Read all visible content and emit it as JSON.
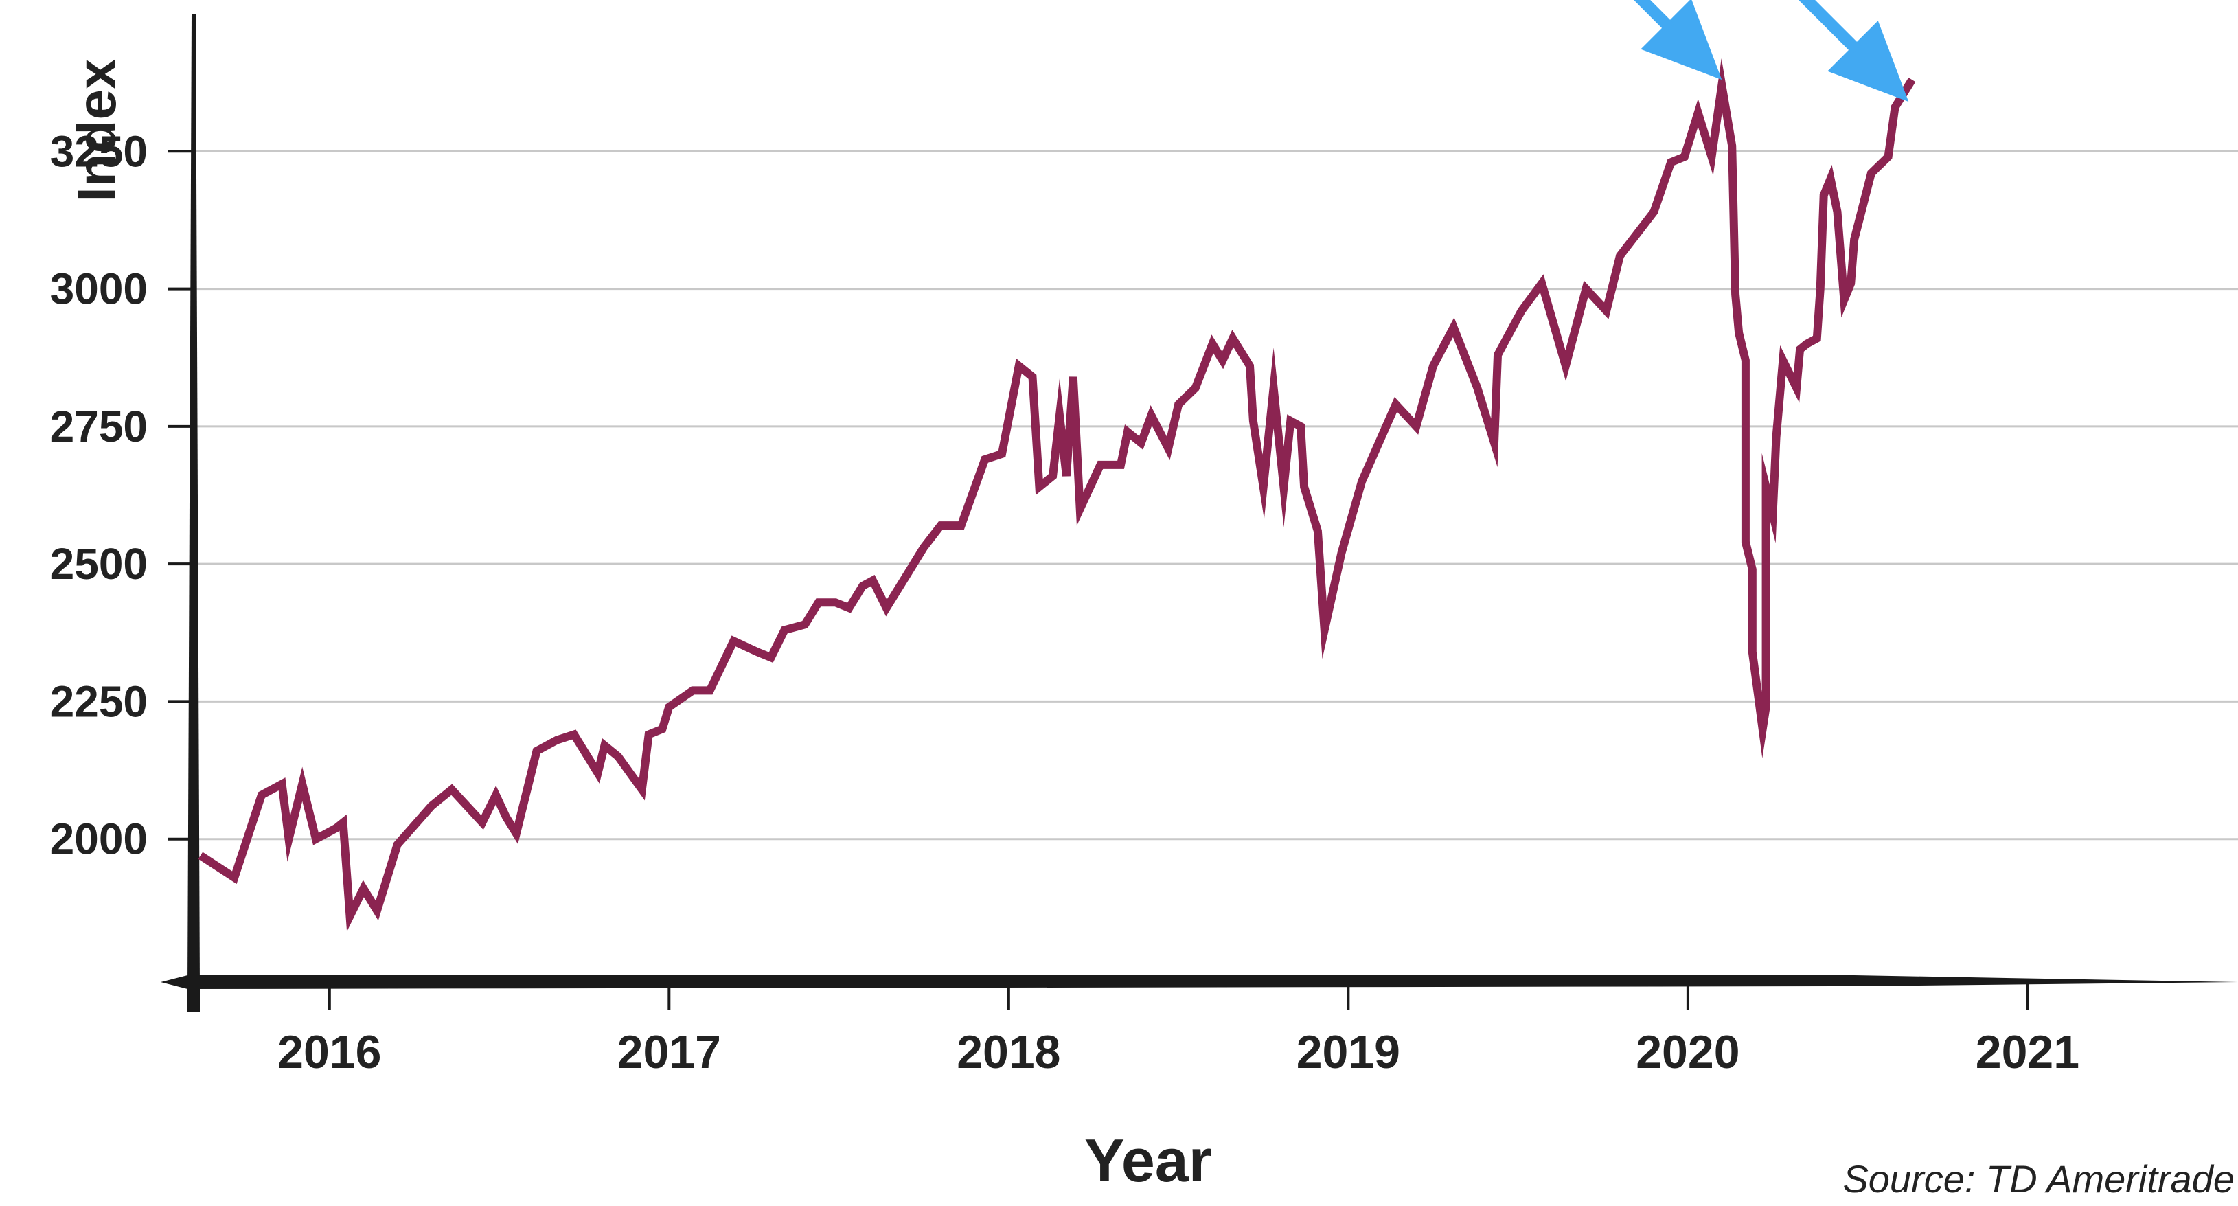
{
  "chart_data": {
    "type": "line",
    "title": "",
    "xlabel": "Year",
    "ylabel": "Index",
    "source": "Source:  TD Ameritrade",
    "xlim": [
      2015.6,
      2021.62
    ],
    "ylim": [
      1740,
      3500
    ],
    "x_ticks": [
      {
        "value": 2016,
        "label": "2016"
      },
      {
        "value": 2017,
        "label": "2017"
      },
      {
        "value": 2018,
        "label": "2018"
      },
      {
        "value": 2019,
        "label": "2019"
      },
      {
        "value": 2020,
        "label": "2020"
      },
      {
        "value": 2021,
        "label": "2021"
      }
    ],
    "y_ticks": [
      {
        "value": 2000,
        "label": "2000"
      },
      {
        "value": 2250,
        "label": "2250"
      },
      {
        "value": 2500,
        "label": "2500"
      },
      {
        "value": 2750,
        "label": "2750"
      },
      {
        "value": 3000,
        "label": "3000"
      },
      {
        "value": 3250,
        "label": "3250"
      }
    ],
    "grid": "horizontal",
    "colors": {
      "line": "#8b2451",
      "arrow": "#42a9f2",
      "axis": "#1a1a1a",
      "grid": "#c8c8c8",
      "text": "#222222"
    },
    "annotations": [
      {
        "name": "arrow-peak-2020",
        "x": 2020.1,
        "y": 3380
      },
      {
        "name": "arrow-peak-2021",
        "x": 2020.65,
        "y": 3340
      }
    ],
    "series": [
      {
        "points": [
          [
            2015.62,
            1970
          ],
          [
            2015.72,
            1930
          ],
          [
            2015.8,
            2080
          ],
          [
            2015.86,
            2100
          ],
          [
            2015.88,
            2000
          ],
          [
            2015.92,
            2100
          ],
          [
            2015.96,
            2000
          ],
          [
            2016.02,
            2020
          ],
          [
            2016.04,
            2030
          ],
          [
            2016.06,
            1860
          ],
          [
            2016.1,
            1910
          ],
          [
            2016.14,
            1870
          ],
          [
            2016.2,
            1990
          ],
          [
            2016.3,
            2060
          ],
          [
            2016.36,
            2090
          ],
          [
            2016.45,
            2030
          ],
          [
            2016.49,
            2080
          ],
          [
            2016.52,
            2040
          ],
          [
            2016.55,
            2010
          ],
          [
            2016.61,
            2160
          ],
          [
            2016.67,
            2180
          ],
          [
            2016.72,
            2190
          ],
          [
            2016.79,
            2120
          ],
          [
            2016.81,
            2170
          ],
          [
            2016.85,
            2150
          ],
          [
            2016.92,
            2090
          ],
          [
            2016.94,
            2190
          ],
          [
            2016.98,
            2200
          ],
          [
            2017.0,
            2240
          ],
          [
            2017.07,
            2270
          ],
          [
            2017.12,
            2270
          ],
          [
            2017.19,
            2360
          ],
          [
            2017.26,
            2340
          ],
          [
            2017.3,
            2330
          ],
          [
            2017.34,
            2380
          ],
          [
            2017.4,
            2390
          ],
          [
            2017.44,
            2430
          ],
          [
            2017.49,
            2430
          ],
          [
            2017.53,
            2420
          ],
          [
            2017.57,
            2460
          ],
          [
            2017.6,
            2470
          ],
          [
            2017.64,
            2420
          ],
          [
            2017.7,
            2480
          ],
          [
            2017.75,
            2530
          ],
          [
            2017.8,
            2570
          ],
          [
            2017.86,
            2570
          ],
          [
            2017.93,
            2690
          ],
          [
            2017.98,
            2700
          ],
          [
            2018.03,
            2860
          ],
          [
            2018.07,
            2840
          ],
          [
            2018.09,
            2640
          ],
          [
            2018.13,
            2660
          ],
          [
            2018.15,
            2770
          ],
          [
            2018.17,
            2660
          ],
          [
            2018.19,
            2840
          ],
          [
            2018.21,
            2600
          ],
          [
            2018.27,
            2680
          ],
          [
            2018.33,
            2680
          ],
          [
            2018.35,
            2740
          ],
          [
            2018.39,
            2720
          ],
          [
            2018.42,
            2770
          ],
          [
            2018.47,
            2710
          ],
          [
            2018.5,
            2790
          ],
          [
            2018.55,
            2820
          ],
          [
            2018.6,
            2900
          ],
          [
            2018.63,
            2870
          ],
          [
            2018.66,
            2910
          ],
          [
            2018.71,
            2860
          ],
          [
            2018.72,
            2760
          ],
          [
            2018.75,
            2640
          ],
          [
            2018.78,
            2820
          ],
          [
            2018.81,
            2640
          ],
          [
            2018.83,
            2760
          ],
          [
            2018.86,
            2750
          ],
          [
            2018.87,
            2640
          ],
          [
            2018.91,
            2560
          ],
          [
            2018.93,
            2380
          ],
          [
            2018.98,
            2520
          ],
          [
            2019.04,
            2650
          ],
          [
            2019.14,
            2790
          ],
          [
            2019.2,
            2750
          ],
          [
            2019.25,
            2860
          ],
          [
            2019.31,
            2930
          ],
          [
            2019.38,
            2820
          ],
          [
            2019.43,
            2720
          ],
          [
            2019.44,
            2880
          ],
          [
            2019.51,
            2960
          ],
          [
            2019.57,
            3010
          ],
          [
            2019.64,
            2860
          ],
          [
            2019.7,
            3000
          ],
          [
            2019.76,
            2960
          ],
          [
            2019.8,
            3060
          ],
          [
            2019.85,
            3100
          ],
          [
            2019.9,
            3140
          ],
          [
            2019.95,
            3230
          ],
          [
            2019.99,
            3240
          ],
          [
            2020.03,
            3320
          ],
          [
            2020.07,
            3240
          ],
          [
            2020.1,
            3370
          ],
          [
            2020.13,
            3260
          ],
          [
            2020.14,
            2990
          ],
          [
            2020.15,
            2920
          ],
          [
            2020.17,
            2870
          ],
          [
            2020.17,
            2540
          ],
          [
            2020.19,
            2490
          ],
          [
            2020.19,
            2340
          ],
          [
            2020.22,
            2200
          ],
          [
            2020.23,
            2240
          ],
          [
            2020.23,
            2640
          ],
          [
            2020.25,
            2590
          ],
          [
            2020.26,
            2730
          ],
          [
            2020.28,
            2870
          ],
          [
            2020.32,
            2820
          ],
          [
            2020.33,
            2890
          ],
          [
            2020.35,
            2900
          ],
          [
            2020.38,
            2910
          ],
          [
            2020.39,
            3000
          ],
          [
            2020.4,
            3170
          ],
          [
            2020.42,
            3200
          ],
          [
            2020.44,
            3140
          ],
          [
            2020.46,
            2980
          ],
          [
            2020.48,
            3010
          ],
          [
            2020.49,
            3090
          ],
          [
            2020.54,
            3210
          ],
          [
            2020.59,
            3240
          ],
          [
            2020.61,
            3330
          ],
          [
            2020.66,
            3380
          ]
        ]
      }
    ]
  }
}
